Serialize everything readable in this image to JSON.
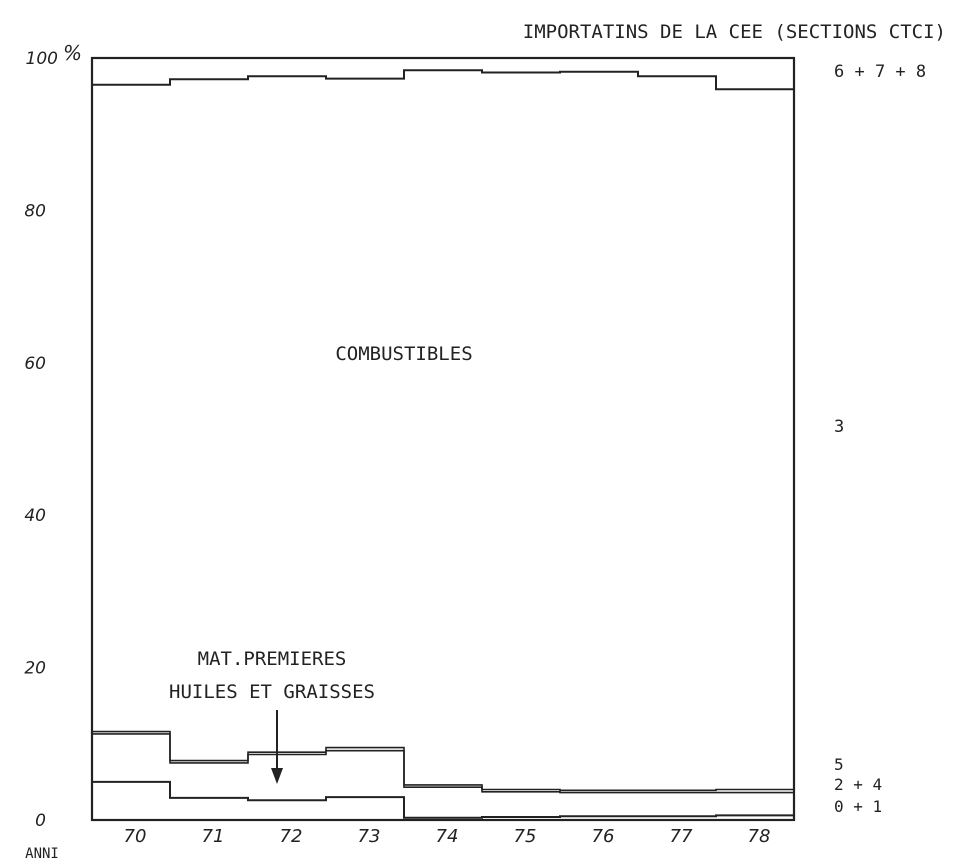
{
  "chart_data": {
    "type": "area",
    "title": "IMPORTATINS DE LA CEE (SECTIONS CTCI)",
    "ylabel": "%",
    "xlabel": "ANNI",
    "y_ticks": [
      "0",
      "20",
      "40",
      "60",
      "80",
      "100"
    ],
    "ylim": [
      0,
      100
    ],
    "x_categories": [
      "70",
      "71",
      "72",
      "73",
      "74",
      "75",
      "76",
      "77",
      "78"
    ],
    "grid": false,
    "series_boundaries": [
      {
        "right_label": "0 + 1",
        "values": [
          5.0,
          2.9,
          2.6,
          3.0,
          0.3,
          0.4,
          0.5,
          0.5,
          0.6
        ]
      },
      {
        "right_label": "2 + 4",
        "values": [
          11.3,
          7.5,
          8.6,
          9.1,
          4.3,
          3.7,
          3.6,
          3.6,
          3.6
        ]
      },
      {
        "right_label": "5",
        "values": [
          11.6,
          7.8,
          8.9,
          9.5,
          4.6,
          4.0,
          3.9,
          3.9,
          4.0
        ]
      },
      {
        "right_label": "3",
        "values": [
          96.5,
          97.2,
          97.6,
          97.3,
          98.4,
          98.1,
          98.2,
          97.6,
          95.9
        ]
      }
    ],
    "top_label": "6 + 7 + 8",
    "annotations": {
      "combustibles": "COMBUSTIBLES",
      "mat_premieres": "MAT.PREMIERES",
      "huiles": "HUILES ET GRAISSES"
    }
  }
}
